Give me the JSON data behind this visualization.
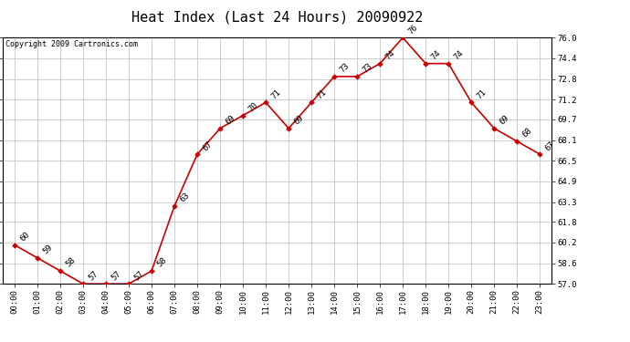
{
  "title": "Heat Index (Last 24 Hours) 20090922",
  "copyright": "Copyright 2009 Cartronics.com",
  "hours": [
    "00:00",
    "01:00",
    "02:00",
    "03:00",
    "04:00",
    "05:00",
    "06:00",
    "07:00",
    "08:00",
    "09:00",
    "10:00",
    "11:00",
    "12:00",
    "13:00",
    "14:00",
    "15:00",
    "16:00",
    "17:00",
    "18:00",
    "19:00",
    "20:00",
    "21:00",
    "22:00",
    "23:00"
  ],
  "values": [
    60,
    59,
    58,
    57,
    57,
    57,
    58,
    63,
    67,
    69,
    70,
    71,
    69,
    71,
    73,
    73,
    74,
    76,
    74,
    74,
    71,
    69,
    68,
    67
  ],
  "ylim_min": 57.0,
  "ylim_max": 76.0,
  "yticks": [
    57.0,
    58.6,
    60.2,
    61.8,
    63.3,
    64.9,
    66.5,
    68.1,
    69.7,
    71.2,
    72.8,
    74.4,
    76.0
  ],
  "ytick_labels": [
    "57.0",
    "58.6",
    "60.2",
    "61.8",
    "63.3",
    "64.9",
    "66.5",
    "68.1",
    "69.7",
    "71.2",
    "72.8",
    "74.4",
    "76.0"
  ],
  "line_color": "#cc0000",
  "marker_color": "#cc0000",
  "grid_color": "#bbbbbb",
  "bg_color": "#ffffff",
  "plot_bg_color": "#ffffff",
  "title_fontsize": 11,
  "tick_fontsize": 6.5,
  "annotation_fontsize": 6.5,
  "copyright_fontsize": 6
}
